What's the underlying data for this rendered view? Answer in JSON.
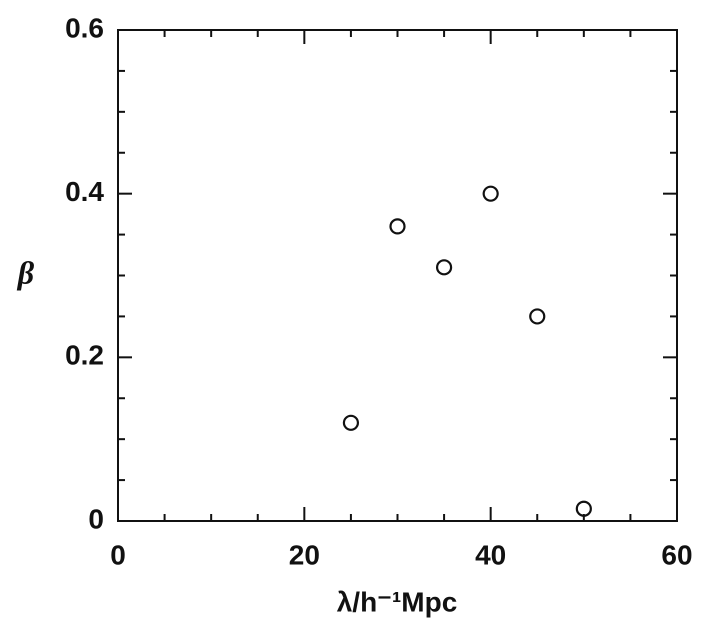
{
  "chart_data": {
    "type": "scatter",
    "x_label": "λ/h⁻¹Mpc",
    "y_label": "β",
    "x": [
      25,
      30,
      35,
      40,
      45,
      50
    ],
    "values": [
      0.12,
      0.36,
      0.31,
      0.4,
      0.25,
      0.015
    ],
    "color": "#111111",
    "xlim": [
      0,
      60
    ],
    "xticks": [
      0,
      20,
      40,
      60
    ],
    "ylim": [
      0,
      0.6
    ],
    "yticks": [
      0,
      0.2,
      0.4,
      0.6
    ]
  }
}
